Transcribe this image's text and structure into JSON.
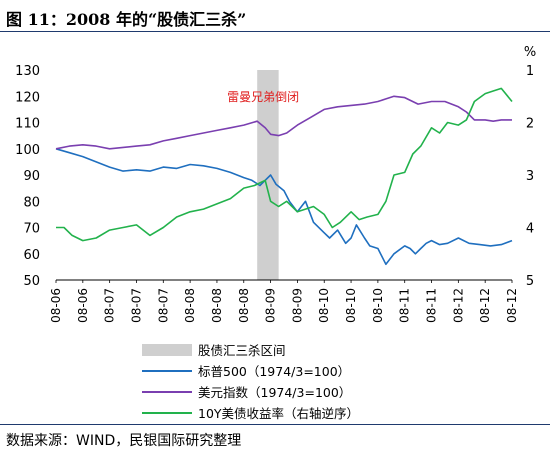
{
  "header": {
    "title": "图 11：2008 年的“股债汇三杀”"
  },
  "footer": {
    "source": "数据来源：WIND，民银国际研究整理"
  },
  "chart_data": {
    "type": "line",
    "x": [
      "08-06",
      "08-06",
      "08-07",
      "08-07",
      "08-07",
      "08-08",
      "08-08",
      "08-08",
      "08-09",
      "08-09",
      "08-10",
      "08-10",
      "08-10",
      "08-11",
      "08-11",
      "08-12",
      "08-12",
      "08-12"
    ],
    "xlim": [
      0,
      17
    ],
    "left_axis": {
      "ylim": [
        50,
        130
      ],
      "ticks": [
        50,
        60,
        70,
        80,
        90,
        100,
        110,
        120,
        130
      ]
    },
    "right_axis": {
      "unit": "%",
      "ylim": [
        5,
        1
      ],
      "ticks": [
        1,
        2,
        3,
        4,
        5
      ],
      "inverted": true
    },
    "shaded_band": {
      "label": "股债汇三杀区间",
      "x_range": [
        7.5,
        8.3
      ],
      "annotation": "雷曼兄弟倒闭"
    },
    "grid": false,
    "legend_position": "bottom",
    "series": [
      {
        "name": "标普500（1974/3=100）",
        "axis": "left",
        "color": "#1f6fbf",
        "x": [
          0,
          0.5,
          1,
          1.5,
          2,
          2.5,
          3,
          3.5,
          4,
          4.5,
          5,
          5.5,
          6,
          6.5,
          7,
          7.3,
          7.6,
          7.8,
          8,
          8.2,
          8.5,
          8.7,
          9,
          9.3,
          9.6,
          10,
          10.2,
          10.5,
          10.8,
          11,
          11.2,
          11.5,
          11.7,
          12,
          12.3,
          12.6,
          13,
          13.2,
          13.4,
          13.6,
          13.8,
          14,
          14.3,
          14.6,
          15,
          15.4,
          15.8,
          16.2,
          16.6,
          17
        ],
        "values": [
          100,
          98.5,
          97,
          95,
          93,
          91.5,
          92,
          91.5,
          93,
          92.5,
          94,
          93.5,
          92.5,
          91,
          89,
          88,
          86,
          88,
          90,
          86.5,
          84,
          80,
          76,
          80,
          72,
          68,
          66,
          69,
          64,
          66,
          71,
          66,
          63,
          62,
          56,
          60,
          63,
          62,
          60,
          62,
          64,
          65,
          63.5,
          64,
          66,
          64,
          63.5,
          63,
          63.5,
          65
        ]
      },
      {
        "name": "美元指数（1974/3=100）",
        "axis": "left",
        "color": "#7a3fb0",
        "x": [
          0,
          0.5,
          1,
          1.5,
          2,
          2.5,
          3,
          3.5,
          4,
          4.5,
          5,
          5.5,
          6,
          6.5,
          7,
          7.5,
          7.8,
          8,
          8.3,
          8.6,
          9,
          9.5,
          10,
          10.5,
          11,
          11.5,
          12,
          12.3,
          12.6,
          13,
          13.5,
          14,
          14.5,
          15,
          15.3,
          15.6,
          16,
          16.3,
          16.6,
          17
        ],
        "values": [
          100,
          101,
          101.5,
          101,
          100,
          100.5,
          101,
          101.5,
          103,
          104,
          105,
          106,
          107,
          108,
          109,
          110.5,
          108,
          105.5,
          105,
          106,
          109,
          112,
          115,
          116,
          116.5,
          117,
          118,
          119,
          120,
          119.5,
          117,
          118,
          118,
          116,
          114,
          111,
          111,
          110.5,
          111,
          111
        ]
      },
      {
        "name": "10Y美债收益率（右轴逆序）",
        "axis": "right",
        "color": "#22b24c",
        "x": [
          0,
          0.3,
          0.6,
          1,
          1.5,
          2,
          2.5,
          3,
          3.5,
          4,
          4.5,
          5,
          5.5,
          6,
          6.5,
          7,
          7.4,
          7.8,
          8,
          8.3,
          8.6,
          9,
          9.3,
          9.6,
          10,
          10.3,
          10.6,
          11,
          11.3,
          11.6,
          12,
          12.3,
          12.6,
          13,
          13.3,
          13.6,
          14,
          14.3,
          14.6,
          15,
          15.3,
          15.6,
          16,
          16.3,
          16.6,
          17
        ],
        "values": [
          4.0,
          4.0,
          4.15,
          4.25,
          4.2,
          4.05,
          4.0,
          3.95,
          4.15,
          4.0,
          3.8,
          3.7,
          3.65,
          3.55,
          3.45,
          3.25,
          3.2,
          3.1,
          3.5,
          3.6,
          3.5,
          3.7,
          3.65,
          3.6,
          3.75,
          4.0,
          3.9,
          3.7,
          3.85,
          3.8,
          3.75,
          3.5,
          3.0,
          2.95,
          2.6,
          2.45,
          2.1,
          2.2,
          2.0,
          2.05,
          1.95,
          1.6,
          1.45,
          1.4,
          1.35,
          1.6
        ]
      }
    ],
    "legend": [
      {
        "label": "股债汇三杀区间",
        "kind": "band",
        "color": "#cfcfcf"
      },
      {
        "label": "标普500（1974/3=100）",
        "kind": "line",
        "color": "#1f6fbf"
      },
      {
        "label": "美元指数（1974/3=100）",
        "kind": "line",
        "color": "#7a3fb0"
      },
      {
        "label": "10Y美债收益率（右轴逆序）",
        "kind": "line",
        "color": "#22b24c"
      }
    ]
  }
}
